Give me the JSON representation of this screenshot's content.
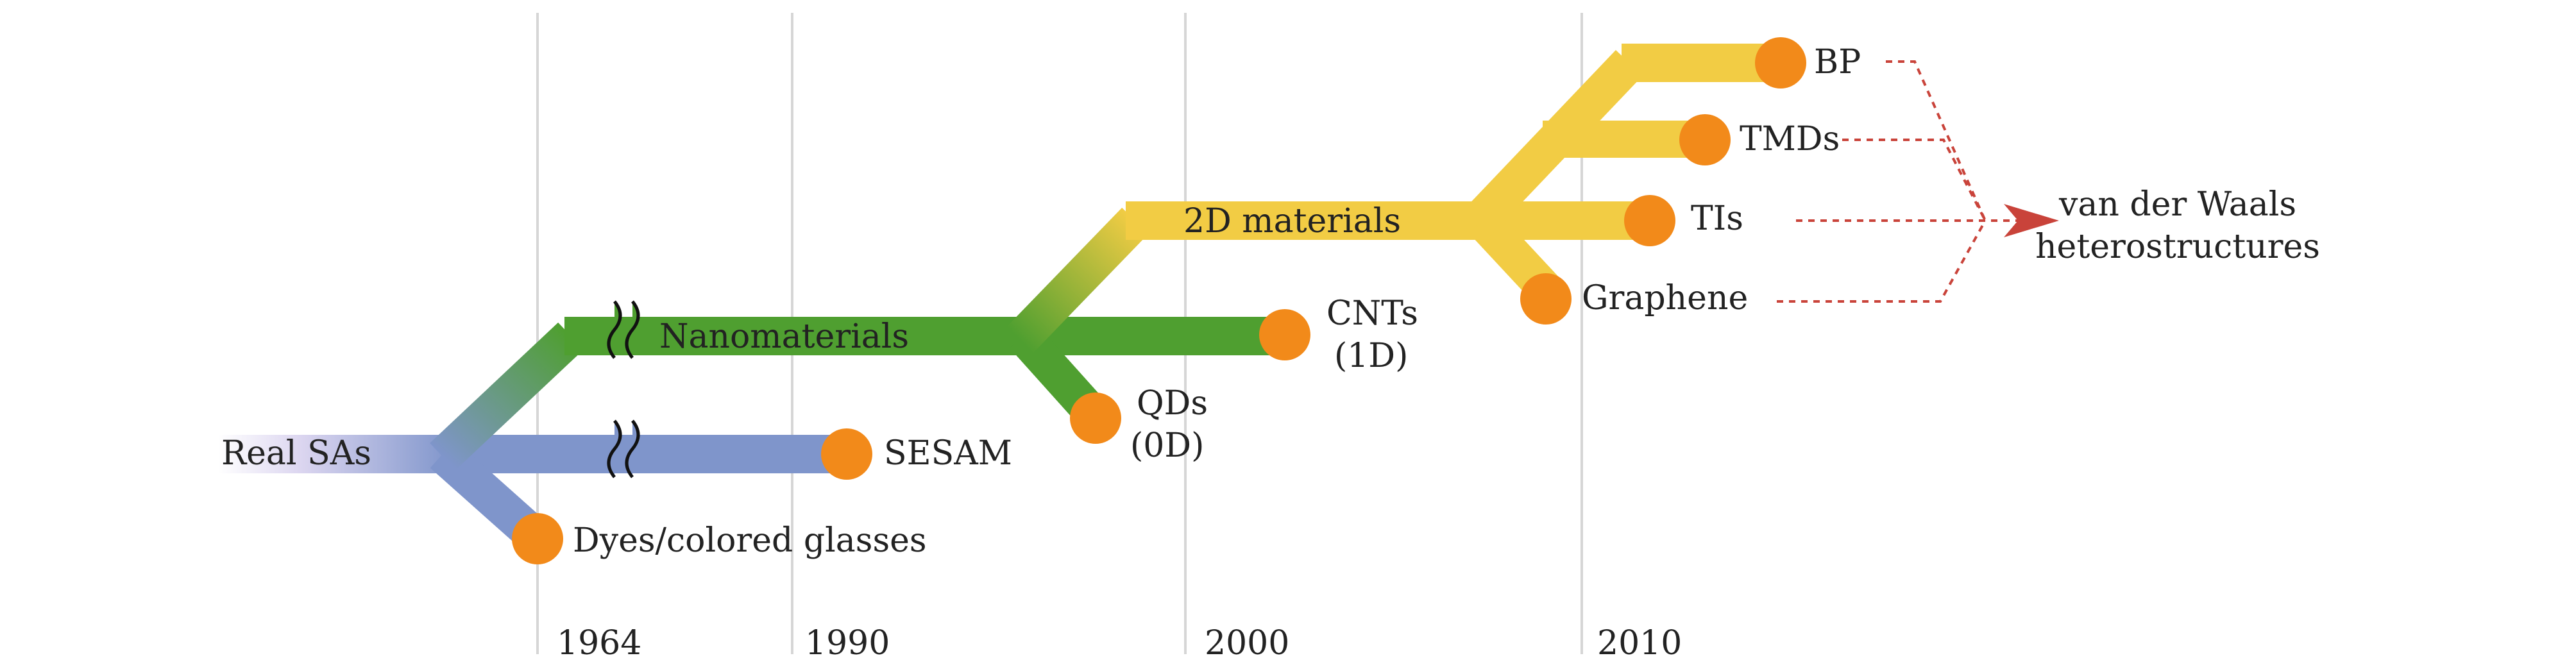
{
  "timeline": {
    "years": [
      "1964",
      "1990",
      "2000",
      "2010"
    ]
  },
  "branches": {
    "root": "Real SAs",
    "nano": "Nanomaterials",
    "twod": "2D materials"
  },
  "nodes": {
    "dyes": "Dyes/colored glasses",
    "sesam": "SESAM",
    "qds_line1": "QDs",
    "qds_line2": "(0D)",
    "cnts_line1": "CNTs",
    "cnts_line2": "(1D)",
    "graphene": "Graphene",
    "tis": "TIs",
    "tmds": "TMDs",
    "bp": "BP"
  },
  "result": {
    "line1": "van der Waals",
    "line2": "heterostructures"
  },
  "colors": {
    "blue": "#7f95cb",
    "green": "#4f9f30",
    "yellow": "#f2cc44",
    "node": "#f28a1a",
    "arrow": "#c9433a",
    "grid": "#d6d6d6"
  }
}
